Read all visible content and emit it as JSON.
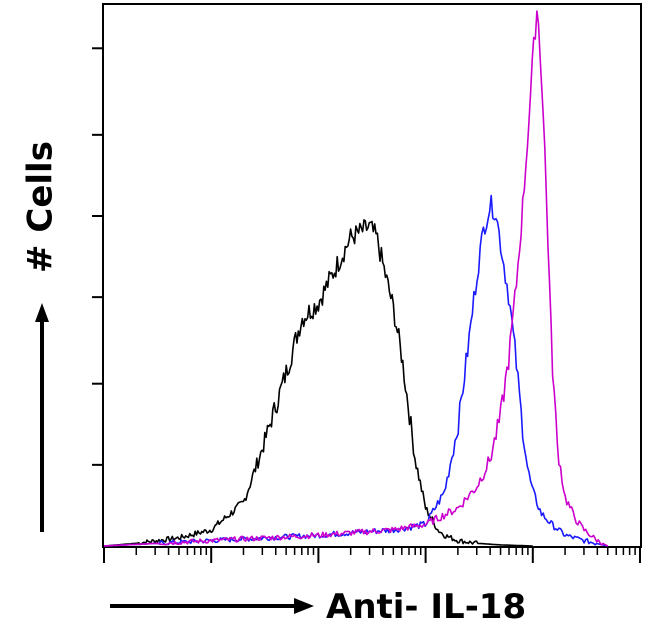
{
  "chart_data": {
    "type": "line",
    "title": "",
    "xlabel": "Anti- IL-18",
    "ylabel": "# Cells",
    "x_scale": "log",
    "xlim": [
      1,
      100000
    ],
    "ylim": [
      0,
      100
    ],
    "grid": false,
    "legend": "none",
    "y_major_ticks": [
      15,
      30,
      46,
      61,
      76,
      92
    ],
    "colors": {
      "series_1": "#000000",
      "series_2": "#1a1aff",
      "series_3": "#cc00cc"
    },
    "series": [
      {
        "color": "#000000",
        "x": [
          1,
          2,
          5,
          10,
          20,
          30,
          50,
          70,
          100,
          150,
          200,
          300,
          350,
          400,
          500,
          600,
          700,
          800,
          1000,
          1300,
          1500,
          2000,
          3000,
          5000,
          10000
        ],
        "y": [
          0,
          0.5,
          1.5,
          3,
          8,
          18,
          32,
          42,
          45,
          52,
          57,
          59,
          57,
          52,
          44,
          35,
          25,
          16,
          7,
          3,
          2,
          1,
          0.5,
          0.2,
          0
        ]
      },
      {
        "color": "#1a1aff",
        "x": [
          1,
          10,
          100,
          500,
          1000,
          1500,
          2000,
          2500,
          3000,
          3500,
          4000,
          4500,
          5000,
          6000,
          7000,
          8000,
          9000,
          10000,
          12000,
          15000,
          20000,
          30000,
          50000
        ],
        "y": [
          0,
          1,
          2,
          3,
          4,
          10,
          22,
          37,
          50,
          59,
          63,
          62,
          56,
          46,
          34,
          22,
          14,
          10,
          6,
          4,
          2,
          1,
          0
        ]
      },
      {
        "color": "#cc00cc",
        "x": [
          1,
          10,
          100,
          500,
          1000,
          2000,
          3000,
          4000,
          5000,
          6000,
          7000,
          8000,
          9000,
          10000,
          11000,
          12000,
          13000,
          14000,
          15000,
          17000,
          20000,
          25000,
          30000,
          40000,
          50000
        ],
        "y": [
          0,
          1,
          2,
          3,
          4,
          7,
          11,
          16,
          24,
          35,
          48,
          62,
          76,
          90,
          100,
          88,
          72,
          54,
          36,
          18,
          9,
          5,
          3,
          1,
          0
        ]
      }
    ]
  }
}
